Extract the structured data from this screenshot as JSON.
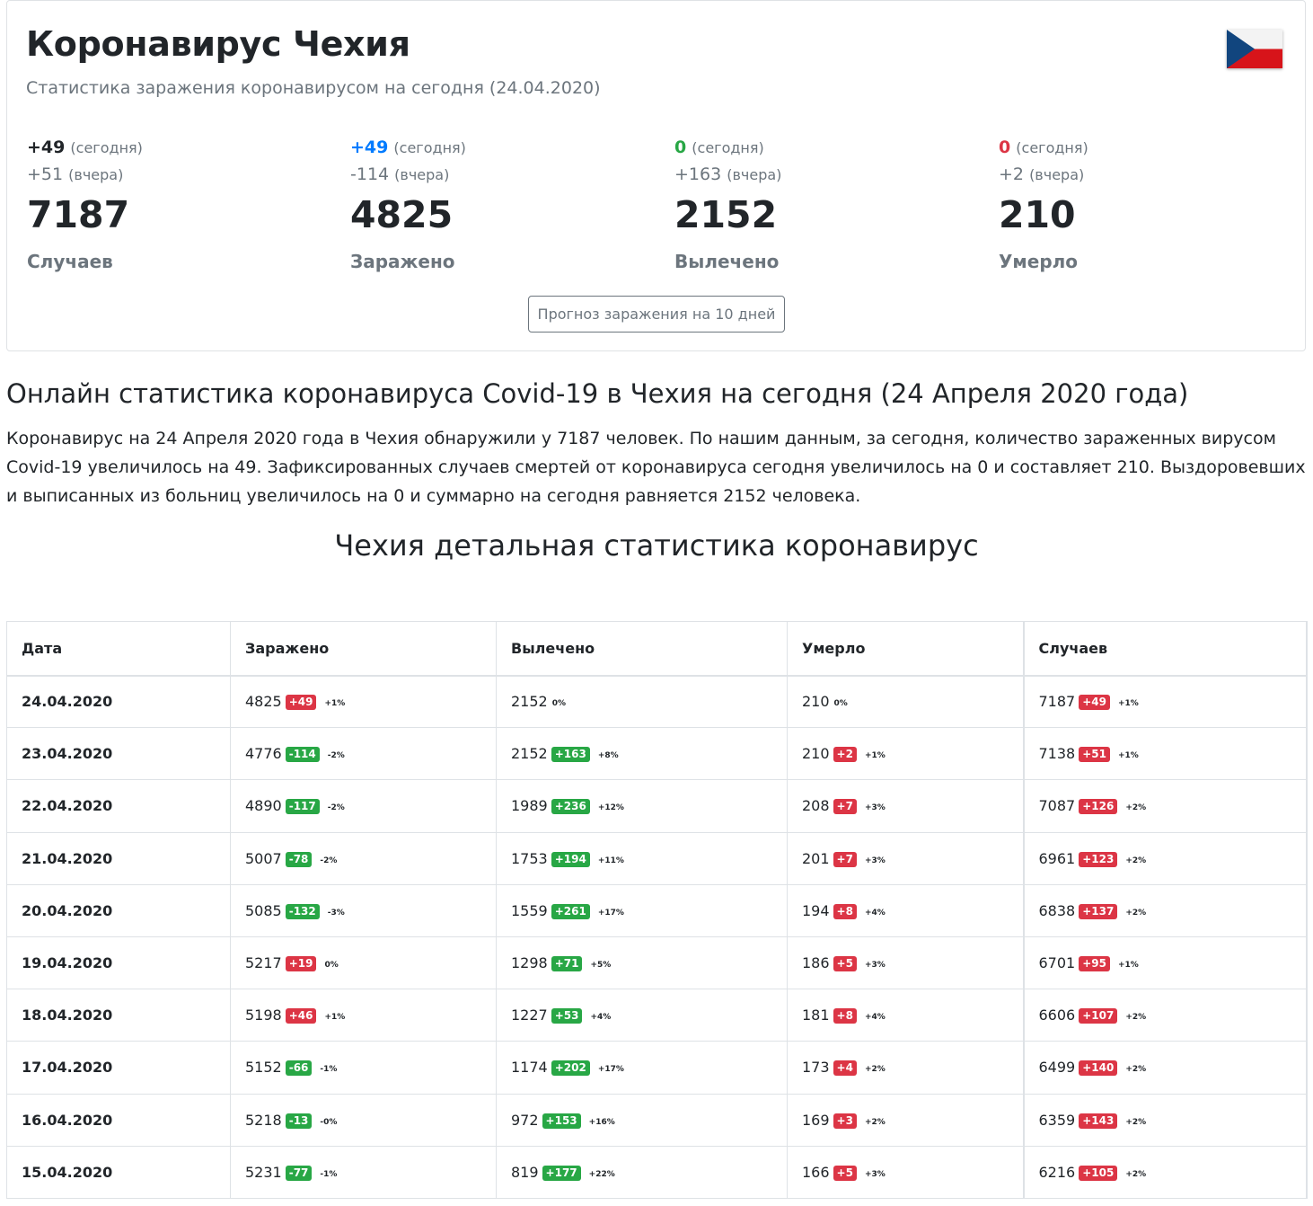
{
  "header": {
    "title": "Коронавирус Чехия",
    "subtitle": "Статистика заражения коронавирусом на сегодня (24.04.2020)",
    "flag_icon": "czech-flag-icon"
  },
  "stats": [
    {
      "today": "+49",
      "today_label": "(сегодня)",
      "today_color": "#212529",
      "yesterday": "+51",
      "yesterday_label": "(вчера)",
      "total": "7187",
      "label": "Случаев"
    },
    {
      "today": "+49",
      "today_label": "(сегодня)",
      "today_color": "#007bff",
      "yesterday": "-114",
      "yesterday_label": "(вчера)",
      "total": "4825",
      "label": "Заражено"
    },
    {
      "today": "0",
      "today_label": "(сегодня)",
      "today_color": "#28a745",
      "yesterday": "+163",
      "yesterday_label": "(вчера)",
      "total": "2152",
      "label": "Вылечено"
    },
    {
      "today": "0",
      "today_label": "(сегодня)",
      "today_color": "#dc3545",
      "yesterday": "+2",
      "yesterday_label": "(вчера)",
      "total": "210",
      "label": "Умерло"
    }
  ],
  "forecast_button": "Прогноз заражения на 10 дней",
  "section": {
    "heading": "Онлайн статистика коронавируса Covid-19 в Чехия на сегодня (24 Апреля 2020 года)",
    "paragraph": "Коронавирус на 24 Апреля 2020 года в Чехия обнаружили у 7187 человек. По нашим данным, за сегодня, количество зараженных вирусом Covid-19 увеличилось на 49. Зафиксированных случаев смертей от коронавируса сегодня увеличилось на 0 и составляет 210. Выздоровевших и выписанных из больниц увеличилось на 0 и суммарно на сегодня равняется 2152 человека.",
    "table_heading": "Чехия детальная статистика коронавирус"
  },
  "table": {
    "headers": [
      "Дата",
      "Заражено",
      "Вылечено",
      "Умерло",
      "Случаев"
    ],
    "colors": {
      "red": "#dc3545",
      "green": "#28a745"
    },
    "rows": [
      {
        "date": "24.04.2020",
        "infected": [
          "4825",
          "+49",
          "red",
          "+1%"
        ],
        "recovered": [
          "2152",
          "",
          "",
          "0%"
        ],
        "deaths": [
          "210",
          "",
          "",
          "0%"
        ],
        "cases": [
          "7187",
          "+49",
          "red",
          "+1%"
        ]
      },
      {
        "date": "23.04.2020",
        "infected": [
          "4776",
          "-114",
          "green",
          "-2%"
        ],
        "recovered": [
          "2152",
          "+163",
          "green",
          "+8%"
        ],
        "deaths": [
          "210",
          "+2",
          "red",
          "+1%"
        ],
        "cases": [
          "7138",
          "+51",
          "red",
          "+1%"
        ]
      },
      {
        "date": "22.04.2020",
        "infected": [
          "4890",
          "-117",
          "green",
          "-2%"
        ],
        "recovered": [
          "1989",
          "+236",
          "green",
          "+12%"
        ],
        "deaths": [
          "208",
          "+7",
          "red",
          "+3%"
        ],
        "cases": [
          "7087",
          "+126",
          "red",
          "+2%"
        ]
      },
      {
        "date": "21.04.2020",
        "infected": [
          "5007",
          "-78",
          "green",
          "-2%"
        ],
        "recovered": [
          "1753",
          "+194",
          "green",
          "+11%"
        ],
        "deaths": [
          "201",
          "+7",
          "red",
          "+3%"
        ],
        "cases": [
          "6961",
          "+123",
          "red",
          "+2%"
        ]
      },
      {
        "date": "20.04.2020",
        "infected": [
          "5085",
          "-132",
          "green",
          "-3%"
        ],
        "recovered": [
          "1559",
          "+261",
          "green",
          "+17%"
        ],
        "deaths": [
          "194",
          "+8",
          "red",
          "+4%"
        ],
        "cases": [
          "6838",
          "+137",
          "red",
          "+2%"
        ]
      },
      {
        "date": "19.04.2020",
        "infected": [
          "5217",
          "+19",
          "red",
          "0%"
        ],
        "recovered": [
          "1298",
          "+71",
          "green",
          "+5%"
        ],
        "deaths": [
          "186",
          "+5",
          "red",
          "+3%"
        ],
        "cases": [
          "6701",
          "+95",
          "red",
          "+1%"
        ]
      },
      {
        "date": "18.04.2020",
        "infected": [
          "5198",
          "+46",
          "red",
          "+1%"
        ],
        "recovered": [
          "1227",
          "+53",
          "green",
          "+4%"
        ],
        "deaths": [
          "181",
          "+8",
          "red",
          "+4%"
        ],
        "cases": [
          "6606",
          "+107",
          "red",
          "+2%"
        ]
      },
      {
        "date": "17.04.2020",
        "infected": [
          "5152",
          "-66",
          "green",
          "-1%"
        ],
        "recovered": [
          "1174",
          "+202",
          "green",
          "+17%"
        ],
        "deaths": [
          "173",
          "+4",
          "red",
          "+2%"
        ],
        "cases": [
          "6499",
          "+140",
          "red",
          "+2%"
        ]
      },
      {
        "date": "16.04.2020",
        "infected": [
          "5218",
          "-13",
          "green",
          "-0%"
        ],
        "recovered": [
          "972",
          "+153",
          "green",
          "+16%"
        ],
        "deaths": [
          "169",
          "+3",
          "red",
          "+2%"
        ],
        "cases": [
          "6359",
          "+143",
          "red",
          "+2%"
        ]
      },
      {
        "date": "15.04.2020",
        "infected": [
          "5231",
          "-77",
          "green",
          "-1%"
        ],
        "recovered": [
          "819",
          "+177",
          "green",
          "+22%"
        ],
        "deaths": [
          "166",
          "+5",
          "red",
          "+3%"
        ],
        "cases": [
          "6216",
          "+105",
          "red",
          "+2%"
        ]
      }
    ]
  }
}
